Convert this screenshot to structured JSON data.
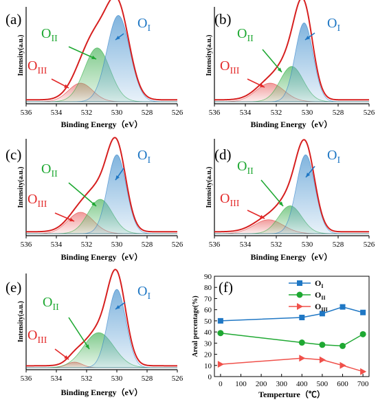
{
  "chart_data": [
    {
      "type": "area",
      "panel": "(a)",
      "xlabel": "Binding Energy（eV）",
      "ylabel": "Intensity(a.u.)",
      "xlim": [
        536,
        526
      ],
      "xticks": [
        "536",
        "534",
        "532",
        "530",
        "528",
        "526"
      ],
      "series": [
        {
          "name": "OI",
          "center": 529.9,
          "amplitude": 0.93,
          "width": 0.75,
          "color": "#1f77c4"
        },
        {
          "name": "OII",
          "center": 531.3,
          "amplitude": 0.58,
          "width": 0.85,
          "color": "#1ea832"
        },
        {
          "name": "OIII",
          "center": 532.4,
          "amplitude": 0.2,
          "width": 0.8,
          "color": "#e32a2a"
        }
      ]
    },
    {
      "type": "area",
      "panel": "(b)",
      "xlabel": "Binding Energy（eV）",
      "ylabel": "Intensity(a.u.)",
      "xlim": [
        536,
        526
      ],
      "xticks": [
        "536",
        "534",
        "532",
        "530",
        "528",
        "526"
      ],
      "series": [
        {
          "name": "OI",
          "center": 530.2,
          "amplitude": 0.85,
          "width": 0.58,
          "color": "#1f77c4"
        },
        {
          "name": "OII",
          "center": 531.0,
          "amplitude": 0.38,
          "width": 0.75,
          "color": "#1ea832"
        },
        {
          "name": "OIII",
          "center": 532.4,
          "amplitude": 0.2,
          "width": 0.9,
          "color": "#e32a2a"
        }
      ]
    },
    {
      "type": "area",
      "panel": "(c)",
      "xlabel": "Binding Energy（eV）",
      "ylabel": "Intensity(a.u.)",
      "xlim": [
        536,
        526
      ],
      "xticks": [
        "536",
        "534",
        "532",
        "530",
        "528",
        "526"
      ],
      "series": [
        {
          "name": "OI",
          "center": 530.0,
          "amplitude": 0.85,
          "width": 0.62,
          "color": "#1f77c4"
        },
        {
          "name": "OII",
          "center": 531.1,
          "amplitude": 0.37,
          "width": 0.8,
          "color": "#1ea832"
        },
        {
          "name": "OIII",
          "center": 532.4,
          "amplitude": 0.23,
          "width": 0.85,
          "color": "#e32a2a"
        }
      ]
    },
    {
      "type": "area",
      "panel": "(d)",
      "xlabel": "Binding Energy（eV）",
      "ylabel": "Intensity(a.u.)",
      "xlim": [
        536,
        526
      ],
      "xticks": [
        "536",
        "534",
        "532",
        "530",
        "528",
        "526"
      ],
      "series": [
        {
          "name": "OI",
          "center": 530.1,
          "amplitude": 0.85,
          "width": 0.6,
          "color": "#1f77c4"
        },
        {
          "name": "OII",
          "center": 531.1,
          "amplitude": 0.3,
          "width": 0.75,
          "color": "#1ea832"
        },
        {
          "name": "OIII",
          "center": 532.5,
          "amplitude": 0.15,
          "width": 0.95,
          "color": "#e32a2a"
        }
      ]
    },
    {
      "type": "area",
      "panel": "(e)",
      "xlabel": "Binding Energy（eV）",
      "ylabel": "Intensity(a.u.)",
      "xlim": [
        536,
        526
      ],
      "xticks": [
        "536",
        "534",
        "532",
        "530",
        "528",
        "526"
      ],
      "series": [
        {
          "name": "OI",
          "center": 530.0,
          "amplitude": 0.85,
          "width": 0.6,
          "color": "#1f77c4"
        },
        {
          "name": "OII",
          "center": 531.2,
          "amplitude": 0.38,
          "width": 1.0,
          "color": "#1ea832"
        },
        {
          "name": "OIII",
          "center": 532.8,
          "amplitude": 0.06,
          "width": 0.5,
          "color": "#e32a2a"
        }
      ]
    },
    {
      "type": "line",
      "panel": "(f)",
      "xlabel": "Temperture（℃）",
      "ylabel": "Areal percentage(%)",
      "x": [
        0,
        400,
        500,
        600,
        700
      ],
      "xlim": [
        -30,
        730
      ],
      "ylim": [
        0,
        90
      ],
      "xticks": [
        0,
        100,
        200,
        300,
        400,
        500,
        600,
        700
      ],
      "yticks": [
        0,
        10,
        20,
        30,
        40,
        50,
        60,
        70,
        80,
        90
      ],
      "legend_position": "top-right",
      "series": [
        {
          "name": "OI",
          "values": [
            50,
            53,
            56.5,
            62.5,
            57.5
          ],
          "marker": "square",
          "color": "#1f77c4"
        },
        {
          "name": "OII",
          "values": [
            39,
            30.5,
            28.5,
            27.5,
            38
          ],
          "marker": "circle",
          "color": "#1ea832"
        },
        {
          "name": "OIII",
          "values": [
            11,
            16.5,
            15,
            10,
            4.5
          ],
          "marker": "triangle",
          "color": "#f0504a"
        }
      ]
    }
  ]
}
